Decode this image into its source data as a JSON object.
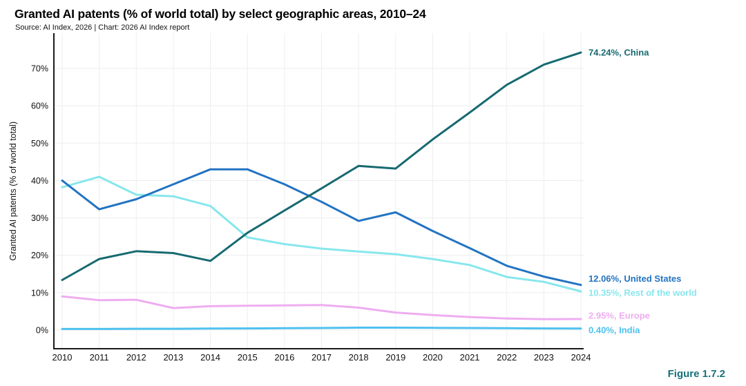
{
  "header": {
    "title": "Granted AI patents (% of world total) by select geographic areas, 2010–24",
    "subtitle": "Source: AI Index, 2026 | Chart: 2026 AI Index report"
  },
  "figure_label": "Figure 1.7.2",
  "chart_data": {
    "type": "line",
    "title": "Granted AI patents (% of world total) by select geographic areas, 2010–24",
    "xlabel": "",
    "ylabel": "Granted AI patents (% of world total)",
    "x": [
      2010,
      2011,
      2012,
      2013,
      2014,
      2015,
      2016,
      2017,
      2018,
      2019,
      2020,
      2021,
      2022,
      2023,
      2024
    ],
    "yticks": [
      0,
      10,
      20,
      30,
      40,
      50,
      60,
      70
    ],
    "ytick_labels": [
      "0%",
      "10%",
      "20%",
      "30%",
      "40%",
      "50%",
      "60%",
      "70%"
    ],
    "ylim": [
      0,
      79
    ],
    "grid": true,
    "legend_position": "end-of-line-labels-right",
    "series": [
      {
        "name": "China",
        "color": "#166a70",
        "end_label": "74.24%, China",
        "values": [
          13.4,
          19.0,
          21.1,
          20.6,
          18.5,
          26.0,
          32.0,
          37.9,
          43.9,
          43.2,
          51.0,
          58.2,
          65.6,
          71.0,
          74.24
        ]
      },
      {
        "name": "United States",
        "color": "#2273c2",
        "end_label": "12.06%, United States",
        "values": [
          40.0,
          32.3,
          35.0,
          39.0,
          43.0,
          43.0,
          39.0,
          34.3,
          29.2,
          31.5,
          26.5,
          21.9,
          17.2,
          14.3,
          12.06
        ]
      },
      {
        "name": "Rest of the world",
        "color": "#87e7ec",
        "end_label": "10.35%, Rest of the world",
        "values": [
          38.2,
          41.0,
          36.2,
          35.8,
          33.2,
          24.8,
          23.0,
          21.8,
          21.0,
          20.3,
          19.0,
          17.4,
          14.2,
          12.9,
          10.35
        ]
      },
      {
        "name": "Europe",
        "color": "#eeadf0",
        "end_label": "2.95%, Europe",
        "values": [
          9.0,
          8.0,
          8.1,
          5.9,
          6.4,
          6.5,
          6.6,
          6.7,
          6.0,
          4.7,
          4.0,
          3.5,
          3.1,
          2.9,
          2.95
        ]
      },
      {
        "name": "India",
        "color": "#4ec1ef",
        "end_label": "0.40%, India",
        "values": [
          0.3,
          0.3,
          0.35,
          0.35,
          0.4,
          0.45,
          0.5,
          0.55,
          0.65,
          0.65,
          0.6,
          0.55,
          0.5,
          0.45,
          0.4
        ]
      }
    ]
  }
}
